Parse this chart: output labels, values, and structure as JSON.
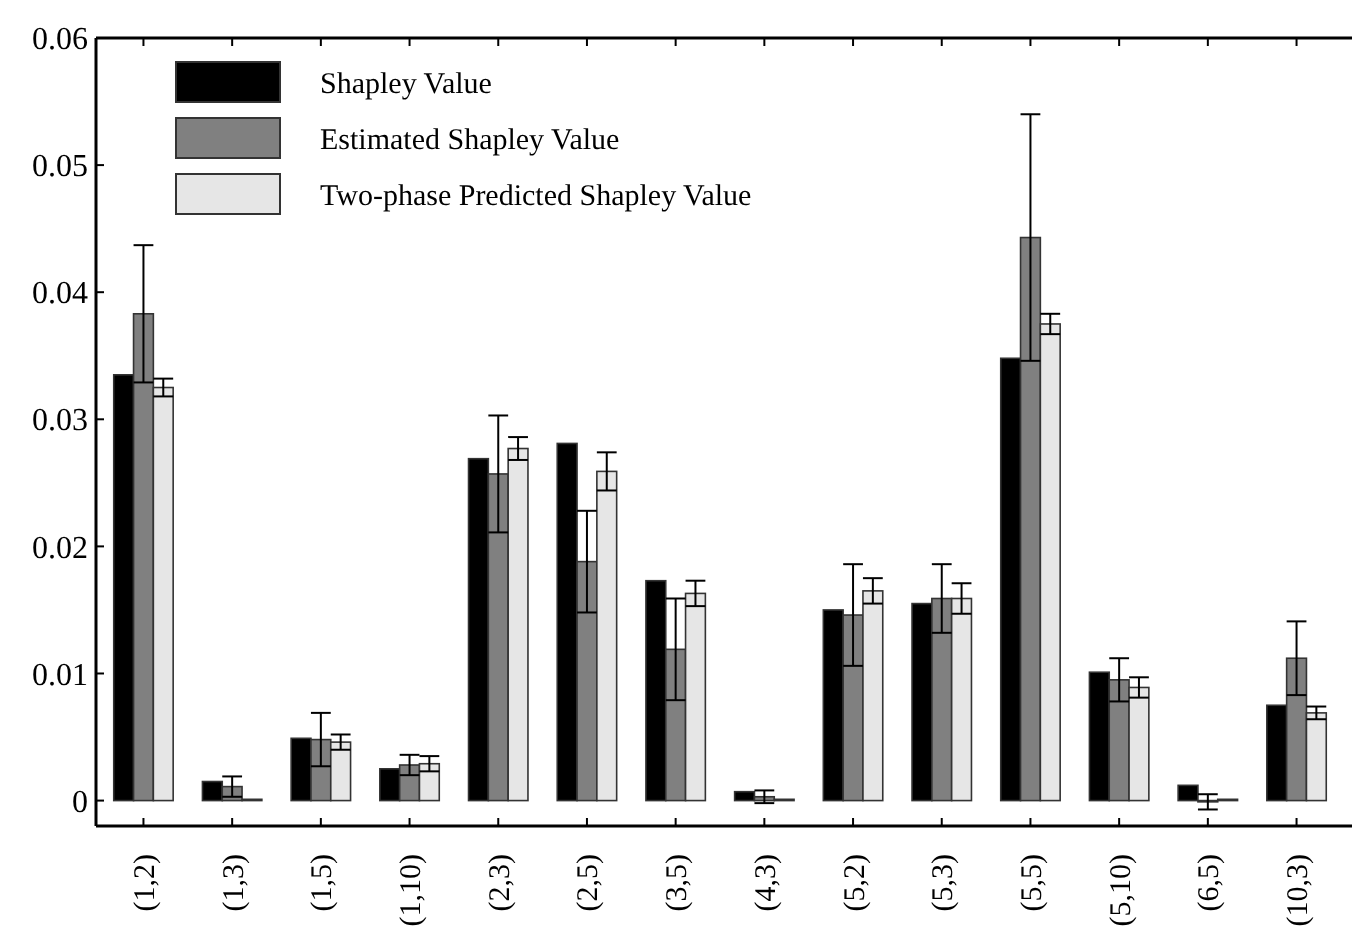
{
  "chart_data": {
    "type": "bar",
    "categories": [
      "(1,2)",
      "(1,3)",
      "(1,5)",
      "(1,10)",
      "(2,3)",
      "(2,5)",
      "(3,5)",
      "(4,3)",
      "(5,2)",
      "(5,3)",
      "(5,5)",
      "(5,10)",
      "(6,5)",
      "(10,3)"
    ],
    "series": [
      {
        "name": "Shapley Value",
        "color": "#000000",
        "values": [
          0.0335,
          0.0015,
          0.0049,
          0.0025,
          0.0269,
          0.0281,
          0.0173,
          0.0007,
          0.015,
          0.0155,
          0.0348,
          0.0101,
          0.0012,
          0.0075
        ]
      },
      {
        "name": "Estimated Shapley Value",
        "color": "#808080",
        "values": [
          0.0383,
          0.0011,
          0.0048,
          0.0028,
          0.0257,
          0.0188,
          0.0119,
          0.0003,
          0.0146,
          0.0159,
          0.0443,
          0.0095,
          -0.0001,
          0.0112
        ],
        "errors": [
          0.0054,
          0.0008,
          0.0021,
          0.0008,
          0.0046,
          0.004,
          0.004,
          0.0005,
          0.004,
          0.0027,
          0.0097,
          0.0017,
          0.0006,
          0.0029
        ]
      },
      {
        "name": "Two-phase Predicted Shapley Value",
        "color": "#e6e6e6",
        "values": [
          0.0325,
          0.0001,
          0.0046,
          0.0029,
          0.0277,
          0.0259,
          0.0163,
          0.0001,
          0.0165,
          0.0159,
          0.0375,
          0.0089,
          0.0001,
          0.0069
        ],
        "errors": [
          0.0007,
          null,
          0.0006,
          0.0006,
          0.0009,
          0.0015,
          0.001,
          null,
          0.001,
          0.0012,
          0.0008,
          0.0008,
          null,
          0.0005
        ]
      }
    ],
    "ylim": [
      -0.002,
      0.06
    ],
    "yticks": [
      0,
      0.01,
      0.02,
      0.03,
      0.04,
      0.05,
      0.06
    ],
    "legend": "top left"
  }
}
